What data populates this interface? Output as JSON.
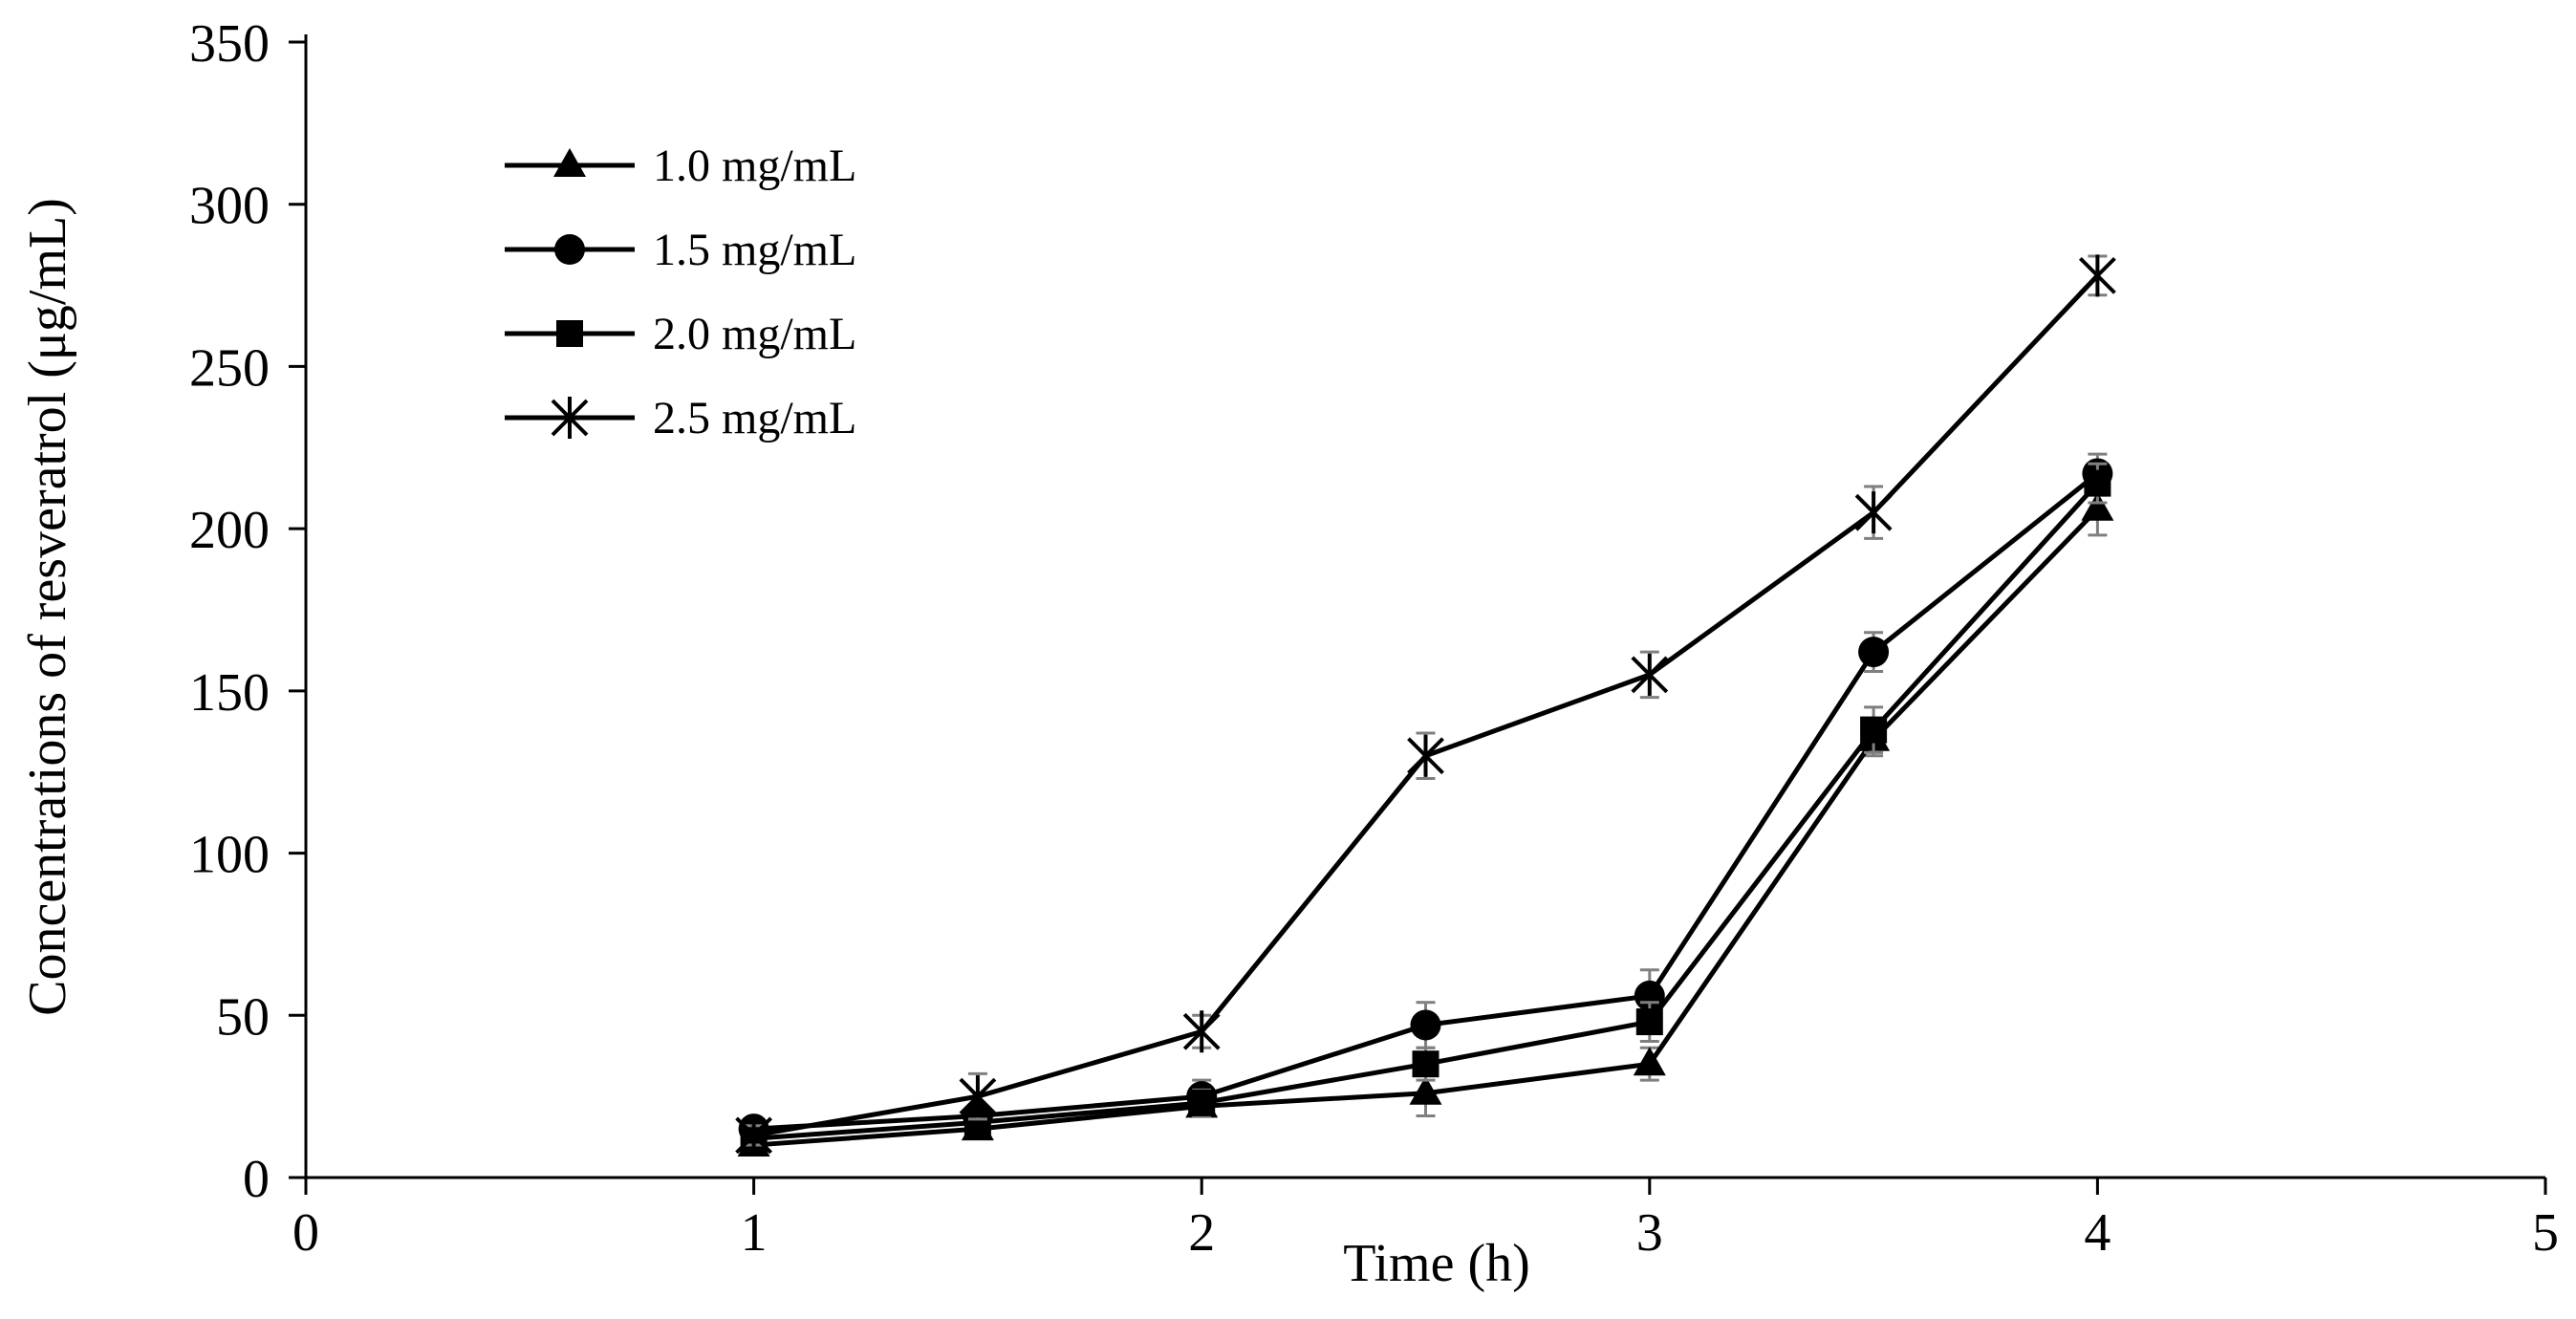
{
  "chart_data": {
    "type": "line",
    "title": "",
    "xlabel": "Time (h)",
    "ylabel": "Concentrations of resveratrol (μg/mL)",
    "xlim": [
      0,
      5
    ],
    "ylim": [
      0,
      350
    ],
    "xticks": [
      0,
      1,
      2,
      3,
      4,
      5
    ],
    "yticks": [
      0,
      50,
      100,
      150,
      200,
      250,
      300,
      350
    ],
    "x": [
      1,
      1.5,
      2,
      2.5,
      3,
      3.5,
      4
    ],
    "legend_position": "top-left",
    "grid": false,
    "series": [
      {
        "name": "1.0 mg/mL",
        "marker": "triangle",
        "values": [
          10,
          15,
          22,
          26,
          35,
          135,
          206
        ],
        "errors": [
          2,
          3,
          3,
          7,
          5,
          5,
          8
        ]
      },
      {
        "name": "1.5 mg/mL",
        "marker": "circle",
        "values": [
          15,
          19,
          25,
          47,
          56,
          162,
          217
        ],
        "errors": [
          3,
          3,
          5,
          7,
          8,
          6,
          6
        ]
      },
      {
        "name": "2.0 mg/mL",
        "marker": "square",
        "values": [
          12,
          17,
          23,
          35,
          48,
          138,
          214
        ],
        "errors": [
          2,
          3,
          4,
          5,
          6,
          7,
          6
        ]
      },
      {
        "name": "2.5 mg/mL",
        "marker": "asterisk",
        "values": [
          13,
          25,
          45,
          130,
          155,
          205,
          278
        ],
        "errors": [
          3,
          7,
          5,
          7,
          7,
          8,
          6
        ]
      }
    ]
  }
}
